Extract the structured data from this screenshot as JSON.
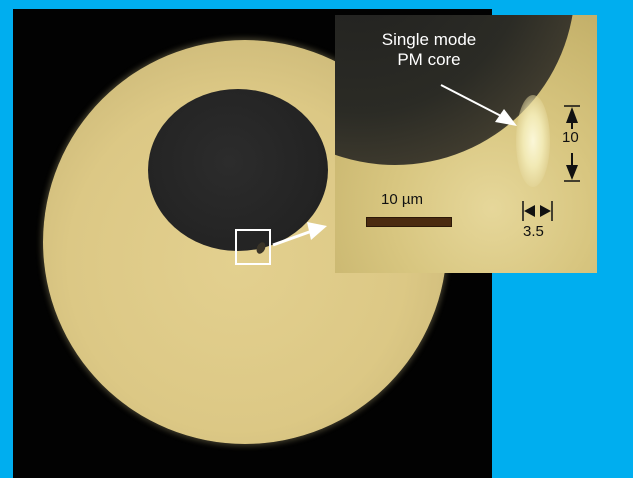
{
  "figure": {
    "inset": {
      "core_label_line1": "Single mode",
      "core_label_line2": "PM core",
      "dimension_length": "10",
      "dimension_width": "3.5",
      "scale_bar_label": "10 µm"
    },
    "colors": {
      "background": "#00aeef",
      "annotation_white": "#ffffff",
      "scale_bar": "#4b2b10"
    }
  }
}
